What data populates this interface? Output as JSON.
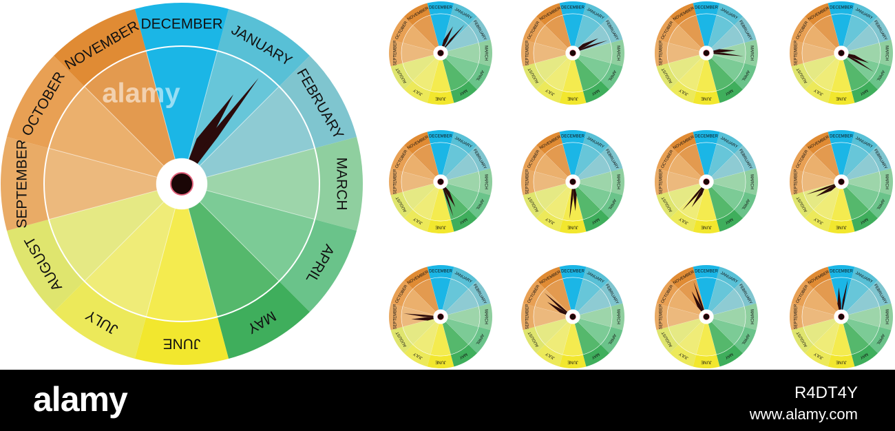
{
  "months": [
    "JANUARY",
    "FEBRUARY",
    "MARCH",
    "APRIL",
    "MAY",
    "JUNE",
    "JULY",
    "AUGUST",
    "SEPTEMBER",
    "OCTOBER",
    "NOVEMBER",
    "DECEMBER"
  ],
  "watermark": "alamy",
  "footer": {
    "logo": "alamy",
    "image_id": "R4DT4Y",
    "url": "www.alamy.com"
  }
}
